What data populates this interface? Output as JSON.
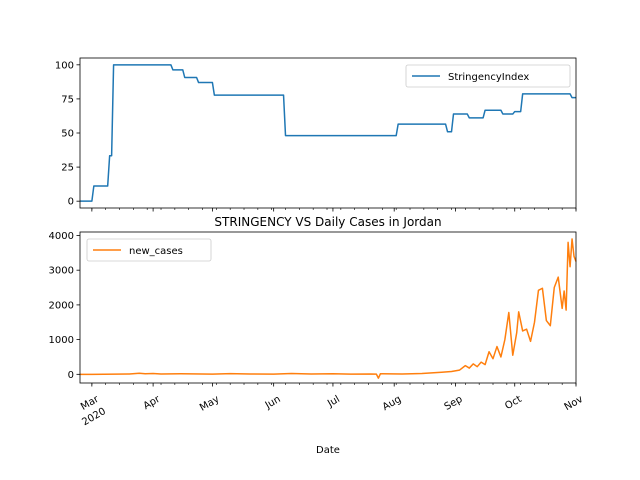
{
  "chart_data": [
    {
      "type": "line",
      "title": "",
      "xlabel": "",
      "ylabel": "",
      "ylim": [
        -5,
        105
      ],
      "yticks": [
        0,
        25,
        50,
        75,
        100
      ],
      "x_dates": [
        "2020-02-24",
        "2020-11-01"
      ],
      "legend": "top-right",
      "series": [
        {
          "name": "StringencyIndex",
          "color": "#1f77b4",
          "points": [
            [
              "2020-02-24",
              0
            ],
            [
              "2020-03-01",
              0
            ],
            [
              "2020-03-02",
              11.1
            ],
            [
              "2020-03-09",
              11.1
            ],
            [
              "2020-03-10",
              33.3
            ],
            [
              "2020-03-11",
              33.3
            ],
            [
              "2020-03-12",
              100
            ],
            [
              "2020-04-10",
              100
            ],
            [
              "2020-04-11",
              96.3
            ],
            [
              "2020-04-16",
              96.3
            ],
            [
              "2020-04-17",
              90.7
            ],
            [
              "2020-04-23",
              90.7
            ],
            [
              "2020-04-24",
              87.0
            ],
            [
              "2020-05-01",
              87.0
            ],
            [
              "2020-05-02",
              77.8
            ],
            [
              "2020-06-06",
              77.8
            ],
            [
              "2020-06-07",
              48.1
            ],
            [
              "2020-08-02",
              48.1
            ],
            [
              "2020-08-03",
              56.5
            ],
            [
              "2020-08-27",
              56.5
            ],
            [
              "2020-08-28",
              50.9
            ],
            [
              "2020-08-30",
              50.9
            ],
            [
              "2020-08-31",
              63.9
            ],
            [
              "2020-09-07",
              63.9
            ],
            [
              "2020-09-08",
              61.1
            ],
            [
              "2020-09-15",
              61.1
            ],
            [
              "2020-09-16",
              66.7
            ],
            [
              "2020-09-24",
              66.7
            ],
            [
              "2020-09-25",
              63.9
            ],
            [
              "2020-09-30",
              63.9
            ],
            [
              "2020-10-01",
              65.7
            ],
            [
              "2020-10-04",
              65.7
            ],
            [
              "2020-10-05",
              78.7
            ],
            [
              "2020-10-29",
              78.7
            ],
            [
              "2020-10-30",
              75.9
            ],
            [
              "2020-11-01",
              75.9
            ]
          ]
        }
      ],
      "x_ticks_shared": true
    },
    {
      "type": "line",
      "title": "STRINGENCY VS Daily Cases in Jordan",
      "xlabel": "Date",
      "ylabel": "",
      "ylim": [
        -250,
        4100
      ],
      "yticks": [
        0,
        1000,
        2000,
        3000,
        4000
      ],
      "x_dates": [
        "2020-02-24",
        "2020-11-01"
      ],
      "legend": "top-left",
      "x_ticks": [
        {
          "date": "2020-03-01",
          "label": "Mar",
          "sublabel": "2020"
        },
        {
          "date": "2020-04-01",
          "label": "Apr",
          "sublabel": ""
        },
        {
          "date": "2020-05-01",
          "label": "May",
          "sublabel": ""
        },
        {
          "date": "2020-06-01",
          "label": "Jun",
          "sublabel": ""
        },
        {
          "date": "2020-07-01",
          "label": "Jul",
          "sublabel": ""
        },
        {
          "date": "2020-08-01",
          "label": "Aug",
          "sublabel": ""
        },
        {
          "date": "2020-09-01",
          "label": "Sep",
          "sublabel": ""
        },
        {
          "date": "2020-10-01",
          "label": "Oct",
          "sublabel": ""
        },
        {
          "date": "2020-11-01",
          "label": "Nov",
          "sublabel": ""
        }
      ],
      "series": [
        {
          "name": "new_cases",
          "color": "#ff7f0e",
          "points": [
            [
              "2020-02-24",
              0
            ],
            [
              "2020-03-01",
              0
            ],
            [
              "2020-03-20",
              10
            ],
            [
              "2020-03-25",
              30
            ],
            [
              "2020-03-28",
              15
            ],
            [
              "2020-04-01",
              25
            ],
            [
              "2020-04-05",
              10
            ],
            [
              "2020-04-15",
              15
            ],
            [
              "2020-05-01",
              5
            ],
            [
              "2020-05-10",
              20
            ],
            [
              "2020-05-20",
              10
            ],
            [
              "2020-06-01",
              5
            ],
            [
              "2020-06-10",
              25
            ],
            [
              "2020-06-20",
              10
            ],
            [
              "2020-07-01",
              15
            ],
            [
              "2020-07-10",
              5
            ],
            [
              "2020-07-20",
              10
            ],
            [
              "2020-07-23",
              5
            ],
            [
              "2020-07-24",
              -110
            ],
            [
              "2020-07-25",
              15
            ],
            [
              "2020-08-05",
              10
            ],
            [
              "2020-08-15",
              25
            ],
            [
              "2020-08-20",
              40
            ],
            [
              "2020-08-25",
              60
            ],
            [
              "2020-08-30",
              80
            ],
            [
              "2020-09-03",
              120
            ],
            [
              "2020-09-06",
              250
            ],
            [
              "2020-09-08",
              180
            ],
            [
              "2020-09-10",
              300
            ],
            [
              "2020-09-12",
              220
            ],
            [
              "2020-09-14",
              350
            ],
            [
              "2020-09-16",
              280
            ],
            [
              "2020-09-18",
              650
            ],
            [
              "2020-09-20",
              450
            ],
            [
              "2020-09-22",
              800
            ],
            [
              "2020-09-24",
              500
            ],
            [
              "2020-09-26",
              1000
            ],
            [
              "2020-09-28",
              1780
            ],
            [
              "2020-09-30",
              550
            ],
            [
              "2020-10-02",
              1200
            ],
            [
              "2020-10-03",
              1800
            ],
            [
              "2020-10-05",
              1250
            ],
            [
              "2020-10-07",
              1300
            ],
            [
              "2020-10-09",
              950
            ],
            [
              "2020-10-11",
              1500
            ],
            [
              "2020-10-13",
              2420
            ],
            [
              "2020-10-15",
              2480
            ],
            [
              "2020-10-17",
              1550
            ],
            [
              "2020-10-19",
              1400
            ],
            [
              "2020-10-21",
              2500
            ],
            [
              "2020-10-23",
              2800
            ],
            [
              "2020-10-25",
              1900
            ],
            [
              "2020-10-26",
              2400
            ],
            [
              "2020-10-27",
              1850
            ],
            [
              "2020-10-28",
              3800
            ],
            [
              "2020-10-29",
              3100
            ],
            [
              "2020-10-30",
              3900
            ],
            [
              "2020-10-31",
              3400
            ],
            [
              "2020-11-01",
              3250
            ]
          ]
        }
      ]
    }
  ]
}
